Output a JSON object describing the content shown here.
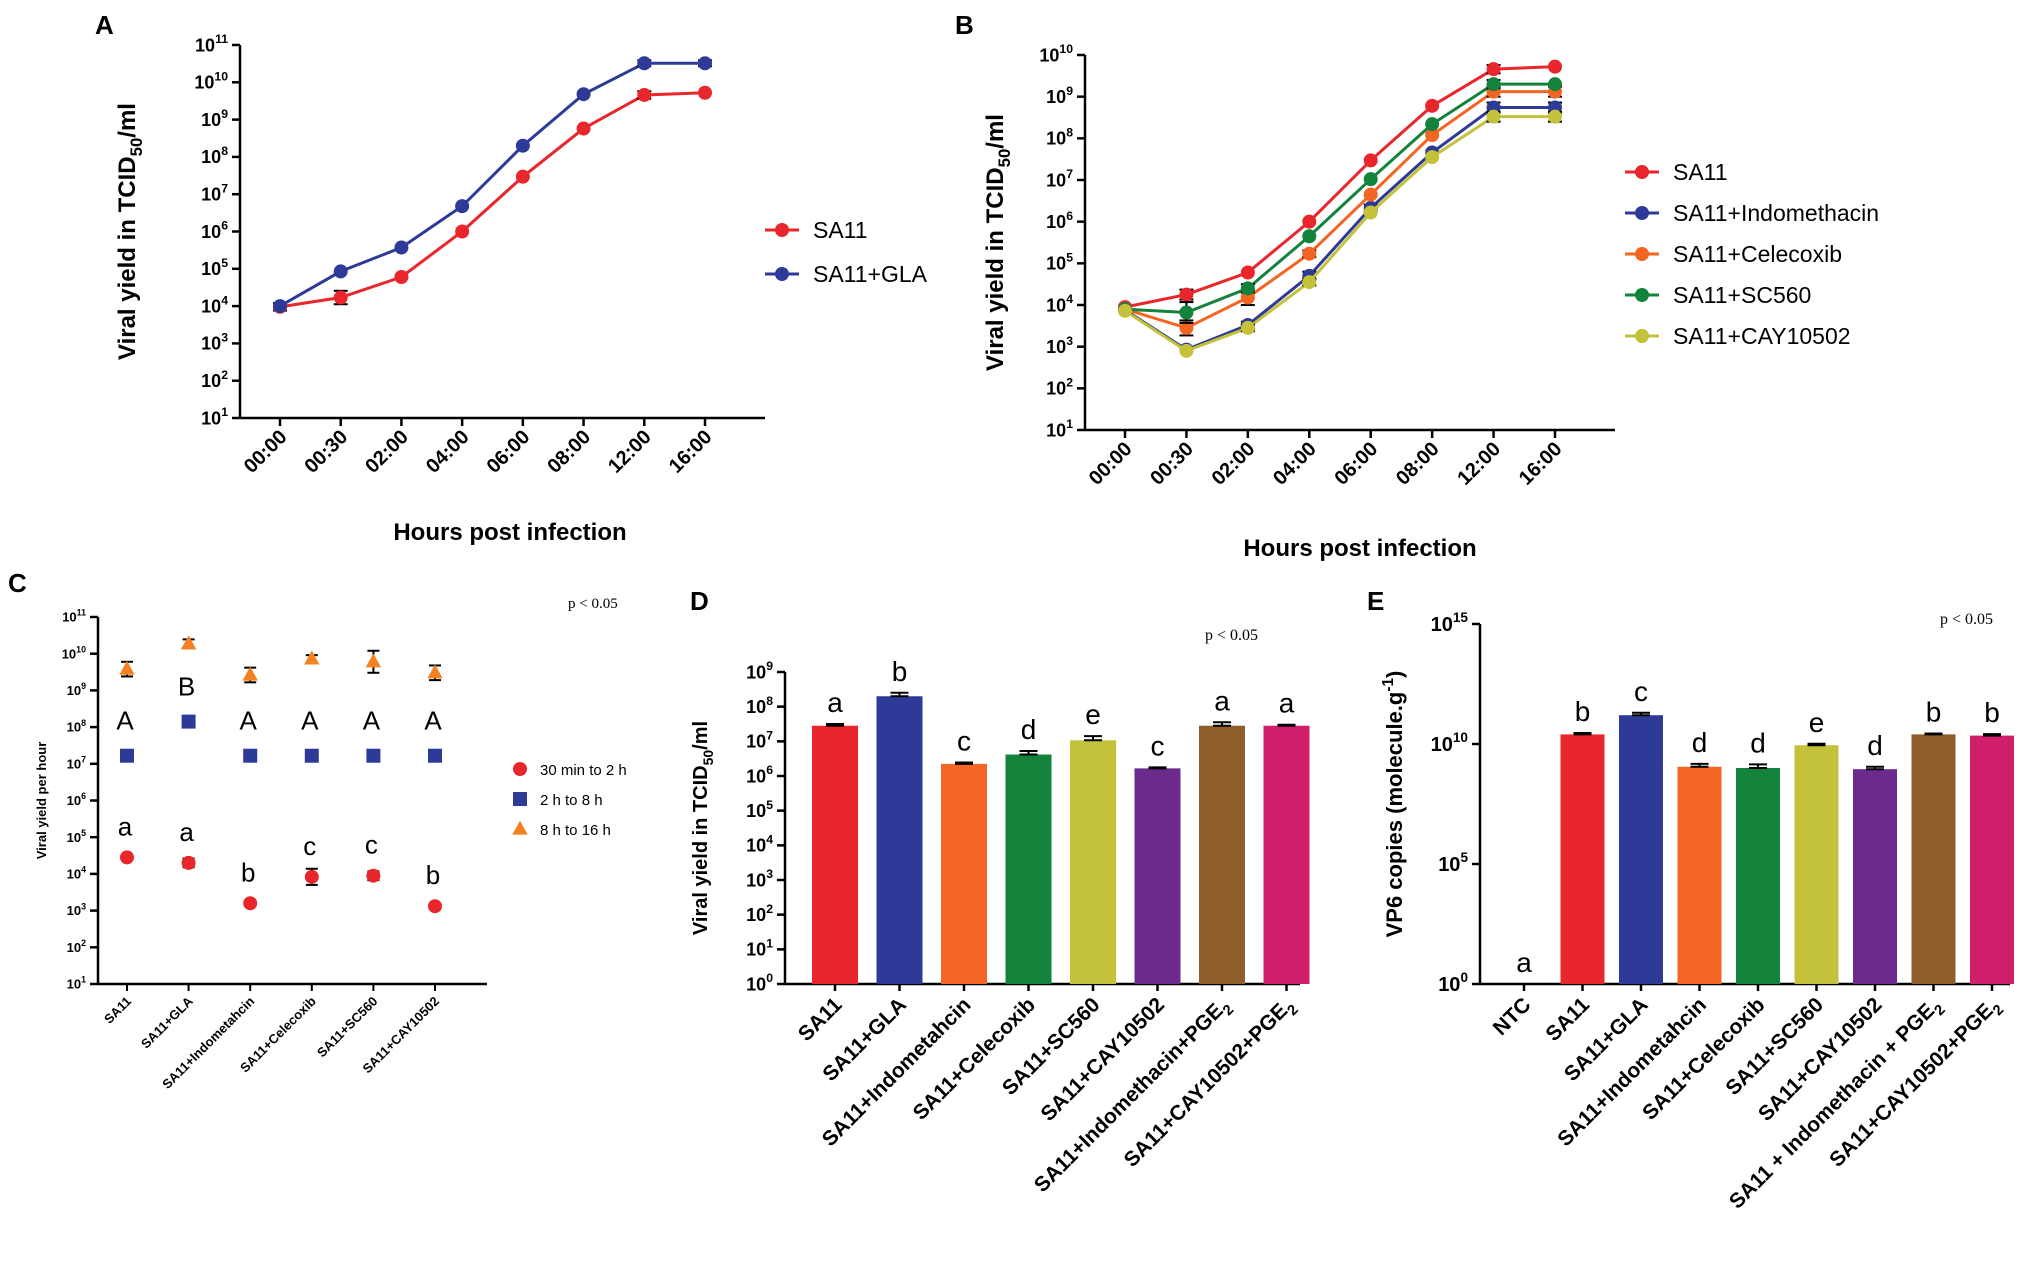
{
  "chart_data": [
    {
      "panel": "A",
      "type": "line",
      "xlabel": "Hours post infection",
      "ylabel_main": "Viral yield in TCID",
      "ylabel_sub": "50",
      "ylabel_tail": "/ml",
      "y_scale": "log10",
      "ylim_exp": [
        1,
        11
      ],
      "ytick_exps": [
        1,
        2,
        3,
        4,
        5,
        6,
        7,
        8,
        9,
        10,
        11
      ],
      "categories": [
        "00:00",
        "00:30",
        "02:00",
        "04:00",
        "06:00",
        "08:00",
        "12:00",
        "16:00"
      ],
      "series": [
        {
          "name": "SA11",
          "color": "#e8262c",
          "log_values": [
            3.98,
            4.23,
            4.78,
            6.0,
            7.47,
            8.76,
            9.66,
            9.72
          ],
          "log_err": [
            0.1,
            0.18,
            0.05,
            0.05,
            0.05,
            0.05,
            0.1,
            0.04
          ]
        },
        {
          "name": "SA11+GLA",
          "color": "#2e3a97",
          "log_values": [
            4.0,
            4.93,
            5.57,
            6.68,
            8.3,
            9.68,
            10.51,
            10.51
          ],
          "log_err": [
            0.05,
            0.06,
            0.05,
            0.05,
            0.05,
            0.05,
            0.08,
            0.08
          ]
        }
      ],
      "legend": [
        "SA11",
        "SA11+GLA"
      ]
    },
    {
      "panel": "B",
      "type": "line",
      "xlabel": "Hours post infection",
      "ylabel_main": "Viral yield in TCID",
      "ylabel_sub": "50",
      "ylabel_tail": "/ml",
      "y_scale": "log10",
      "ylim_exp": [
        1,
        10
      ],
      "ytick_exps": [
        1,
        2,
        3,
        4,
        5,
        6,
        7,
        8,
        9,
        10
      ],
      "categories": [
        "00:00",
        "00:30",
        "02:00",
        "04:00",
        "06:00",
        "08:00",
        "12:00",
        "16:00"
      ],
      "series": [
        {
          "name": "SA11",
          "color": "#e8262c",
          "log_values": [
            3.95,
            4.25,
            4.78,
            6.0,
            7.47,
            8.78,
            9.66,
            9.72
          ],
          "log_err": [
            0.06,
            0.12,
            0.05,
            0.05,
            0.05,
            0.05,
            0.1,
            0.04
          ]
        },
        {
          "name": "SA11+Indomethacin",
          "color": "#2e3a97",
          "log_values": [
            3.88,
            2.93,
            3.52,
            4.7,
            6.33,
            7.66,
            8.74,
            8.74
          ],
          "log_err": [
            0.06,
            0.06,
            0.08,
            0.1,
            0.08,
            0.05,
            0.12,
            0.12
          ]
        },
        {
          "name": "SA11+Celecoxib",
          "color": "#f26522",
          "log_values": [
            3.9,
            3.45,
            4.18,
            5.23,
            6.65,
            8.08,
            9.12,
            9.12
          ],
          "log_err": [
            0.06,
            0.18,
            0.18,
            0.08,
            0.05,
            0.05,
            0.12,
            0.12
          ]
        },
        {
          "name": "SA11+SC560",
          "color": "#13833b",
          "log_values": [
            3.9,
            3.82,
            4.4,
            5.65,
            7.02,
            8.34,
            9.3,
            9.3
          ],
          "log_err": [
            0.06,
            0.25,
            0.1,
            0.05,
            0.05,
            0.05,
            0.1,
            0.06
          ]
        },
        {
          "name": "SA11+CAY10502",
          "color": "#c3c23a",
          "log_values": [
            3.86,
            2.9,
            3.45,
            4.55,
            6.22,
            7.55,
            8.52,
            8.52
          ],
          "log_err": [
            0.06,
            0.06,
            0.08,
            0.08,
            0.05,
            0.05,
            0.12,
            0.12
          ]
        }
      ],
      "legend": [
        "SA11",
        "SA11+Indomethacin",
        "SA11+Celecoxib",
        "SA11+SC560",
        "SA11+CAY10502"
      ]
    },
    {
      "panel": "C",
      "type": "scatter",
      "ylabel": "Viral yield per hour",
      "y_scale": "log10",
      "ylim_exp": [
        1,
        11
      ],
      "ytick_exps": [
        1,
        2,
        3,
        4,
        5,
        6,
        7,
        8,
        9,
        10,
        11
      ],
      "categories": [
        "SA11",
        "SA11+GLA",
        "SA11+Indometahcin",
        "SA11+Celecoxib",
        "SA11+SC560",
        "SA11+CAY10502"
      ],
      "annotation": "p < 0.05",
      "series": [
        {
          "name": "30 min to 2 h",
          "color": "#e8262c",
          "marker": "circle",
          "log_values": [
            4.45,
            4.3,
            3.2,
            3.92,
            3.95,
            3.12
          ],
          "log_err": [
            0,
            0.12,
            0.05,
            0.22,
            0.12,
            0.06
          ],
          "letters": [
            "a",
            "a",
            "b",
            "c",
            "c",
            "b"
          ]
        },
        {
          "name": "2 h to 8 h",
          "color": "#2e3a97",
          "marker": "square",
          "log_values": [
            7.22,
            8.15,
            7.22,
            7.22,
            7.22,
            7.22
          ],
          "log_err": [
            0,
            0,
            0,
            0,
            0,
            0
          ],
          "letters": [
            "A",
            "B",
            "A",
            "A",
            "A",
            "A"
          ]
        },
        {
          "name": "8 h to 16 h",
          "color": "#f58220",
          "marker": "triangle",
          "log_values": [
            9.58,
            10.27,
            9.42,
            9.86,
            9.78,
            9.48
          ],
          "log_err": [
            0.2,
            0.12,
            0.2,
            0.1,
            0.3,
            0.2
          ],
          "letters": []
        }
      ],
      "legend": [
        "30 min to 2 h",
        "2 h to 8 h",
        "8 h to 16 h"
      ]
    },
    {
      "panel": "D",
      "type": "bar",
      "ylabel_main": "Viral yield in TCID",
      "ylabel_sub": "50",
      "ylabel_tail": "/ml",
      "y_scale": "log10",
      "ylim_exp": [
        0,
        9
      ],
      "ytick_exps": [
        0,
        1,
        2,
        3,
        4,
        5,
        6,
        7,
        8,
        9
      ],
      "annotation": "p < 0.05",
      "categories": [
        "SA11",
        "SA11+GLA",
        "SA11+Indometahcin",
        "SA11+Celecoxib",
        "SA11+SC560",
        "SA11+CAY10502",
        "SA11+Indomethacin+PGE",
        "SA11+CAY10502+PGE"
      ],
      "category_subscripts": [
        "",
        "",
        "",
        "",
        "",
        "",
        "2",
        "2"
      ],
      "colors": [
        "#e8262c",
        "#2e3a97",
        "#f26522",
        "#13833b",
        "#c3c23a",
        "#6c2a8c",
        "#8e5d2a",
        "#cf1f6b"
      ],
      "log_values": [
        7.45,
        8.3,
        6.35,
        6.62,
        7.03,
        6.22,
        7.45,
        7.45
      ],
      "log_err": [
        0.05,
        0.1,
        0.04,
        0.1,
        0.12,
        0.03,
        0.1,
        0.03
      ],
      "letters": [
        "a",
        "b",
        "c",
        "d",
        "e",
        "c",
        "a",
        "a"
      ]
    },
    {
      "panel": "E",
      "type": "bar",
      "ylabel_main": "VP6 copies (molecule.g",
      "ylabel_sup": "-1",
      "ylabel_tail": ")",
      "y_scale": "log10",
      "ylim_exp": [
        0,
        15
      ],
      "ytick_exps": [
        0,
        5,
        10,
        15
      ],
      "annotation": "p < 0.05",
      "categories": [
        "NTC",
        "SA11",
        "SA11+GLA",
        "SA11+Indometahcin",
        "SA11+Celecoxib",
        "SA11+SC560",
        "SA11+CAY10502",
        "SA11 + Indomethacin + PGE",
        "SA11+CAY10502+PGE"
      ],
      "category_subscripts": [
        "",
        "",
        "",
        "",
        "",
        "",
        "",
        "2",
        "2"
      ],
      "colors": [
        "#ffffff",
        "#e8262c",
        "#2e3a97",
        "#f26522",
        "#13833b",
        "#c3c23a",
        "#6c2a8c",
        "#8e5d2a",
        "#cf1f6b"
      ],
      "log_values": [
        0,
        10.4,
        11.2,
        9.05,
        9.0,
        9.95,
        8.95,
        10.4,
        10.35
      ],
      "log_err": [
        0,
        0.06,
        0.1,
        0.12,
        0.15,
        0.06,
        0.1,
        0.04,
        0.06
      ],
      "letters": [
        "a",
        "b",
        "c",
        "d",
        "d",
        "e",
        "d",
        "b",
        "b"
      ]
    }
  ]
}
